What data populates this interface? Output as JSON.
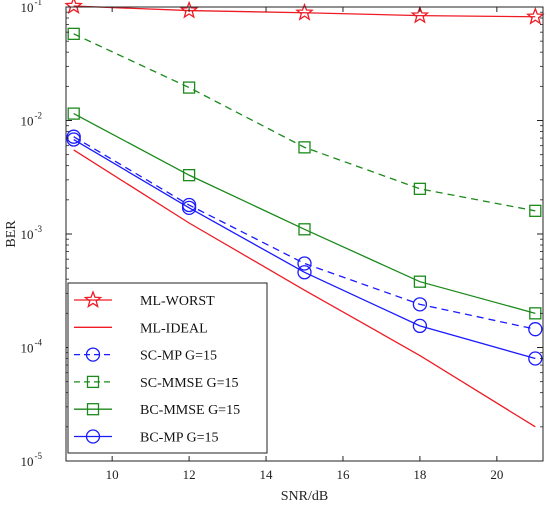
{
  "chart_data": {
    "type": "line",
    "xlabel": "SNR/dB",
    "ylabel": "BER",
    "xlim": [
      8.8,
      21.2
    ],
    "ylim": [
      1e-05,
      0.1
    ],
    "yscale": "log",
    "x_ticks": [
      10,
      12,
      14,
      16,
      18,
      20
    ],
    "y_ticks": [
      {
        "value": 1e-05,
        "base": "10",
        "exp": "-5"
      },
      {
        "value": 0.0001,
        "base": "10",
        "exp": "-4"
      },
      {
        "value": 0.001,
        "base": "10",
        "exp": "-3"
      },
      {
        "value": 0.01,
        "base": "10",
        "exp": "-2"
      },
      {
        "value": 0.1,
        "base": "10",
        "exp": "-1"
      }
    ],
    "grid": false,
    "legend_position": "bottom-left",
    "series": [
      {
        "name": "ML-WORST",
        "color": "#ee1c25",
        "dash": "solid",
        "marker": "star",
        "x": [
          9,
          12,
          15,
          18,
          21
        ],
        "y": [
          0.102,
          0.093,
          0.089,
          0.084,
          0.082
        ]
      },
      {
        "name": "ML-IDEAL",
        "color": "#ee1c25",
        "dash": "solid",
        "marker": "none",
        "x": [
          9,
          12,
          15,
          18,
          21
        ],
        "y": [
          0.0055,
          0.00125,
          0.00032,
          8.5e-05,
          2e-05
        ]
      },
      {
        "name": "SC-MP G=15",
        "color": "#1a1aff",
        "dash": "dashed",
        "marker": "circle",
        "x": [
          9,
          12,
          15,
          18,
          21
        ],
        "y": [
          0.0072,
          0.0018,
          0.00055,
          0.00024,
          0.000145
        ]
      },
      {
        "name": "SC-MMSE G=15",
        "color": "#1b8a1b",
        "dash": "dashed",
        "marker": "square",
        "x": [
          9,
          12,
          15,
          18,
          21
        ],
        "y": [
          0.058,
          0.0195,
          0.0058,
          0.0025,
          0.0016
        ]
      },
      {
        "name": "BC-MMSE G=15",
        "color": "#1b8a1b",
        "dash": "solid",
        "marker": "square",
        "x": [
          9,
          12,
          15,
          18,
          21
        ],
        "y": [
          0.0115,
          0.0033,
          0.0011,
          0.00038,
          0.0002
        ]
      },
      {
        "name": "BC-MP G=15",
        "color": "#1a1aff",
        "dash": "solid",
        "marker": "circle",
        "x": [
          9,
          12,
          15,
          18,
          21
        ],
        "y": [
          0.0068,
          0.0017,
          0.00046,
          0.000155,
          8e-05
        ]
      }
    ]
  }
}
